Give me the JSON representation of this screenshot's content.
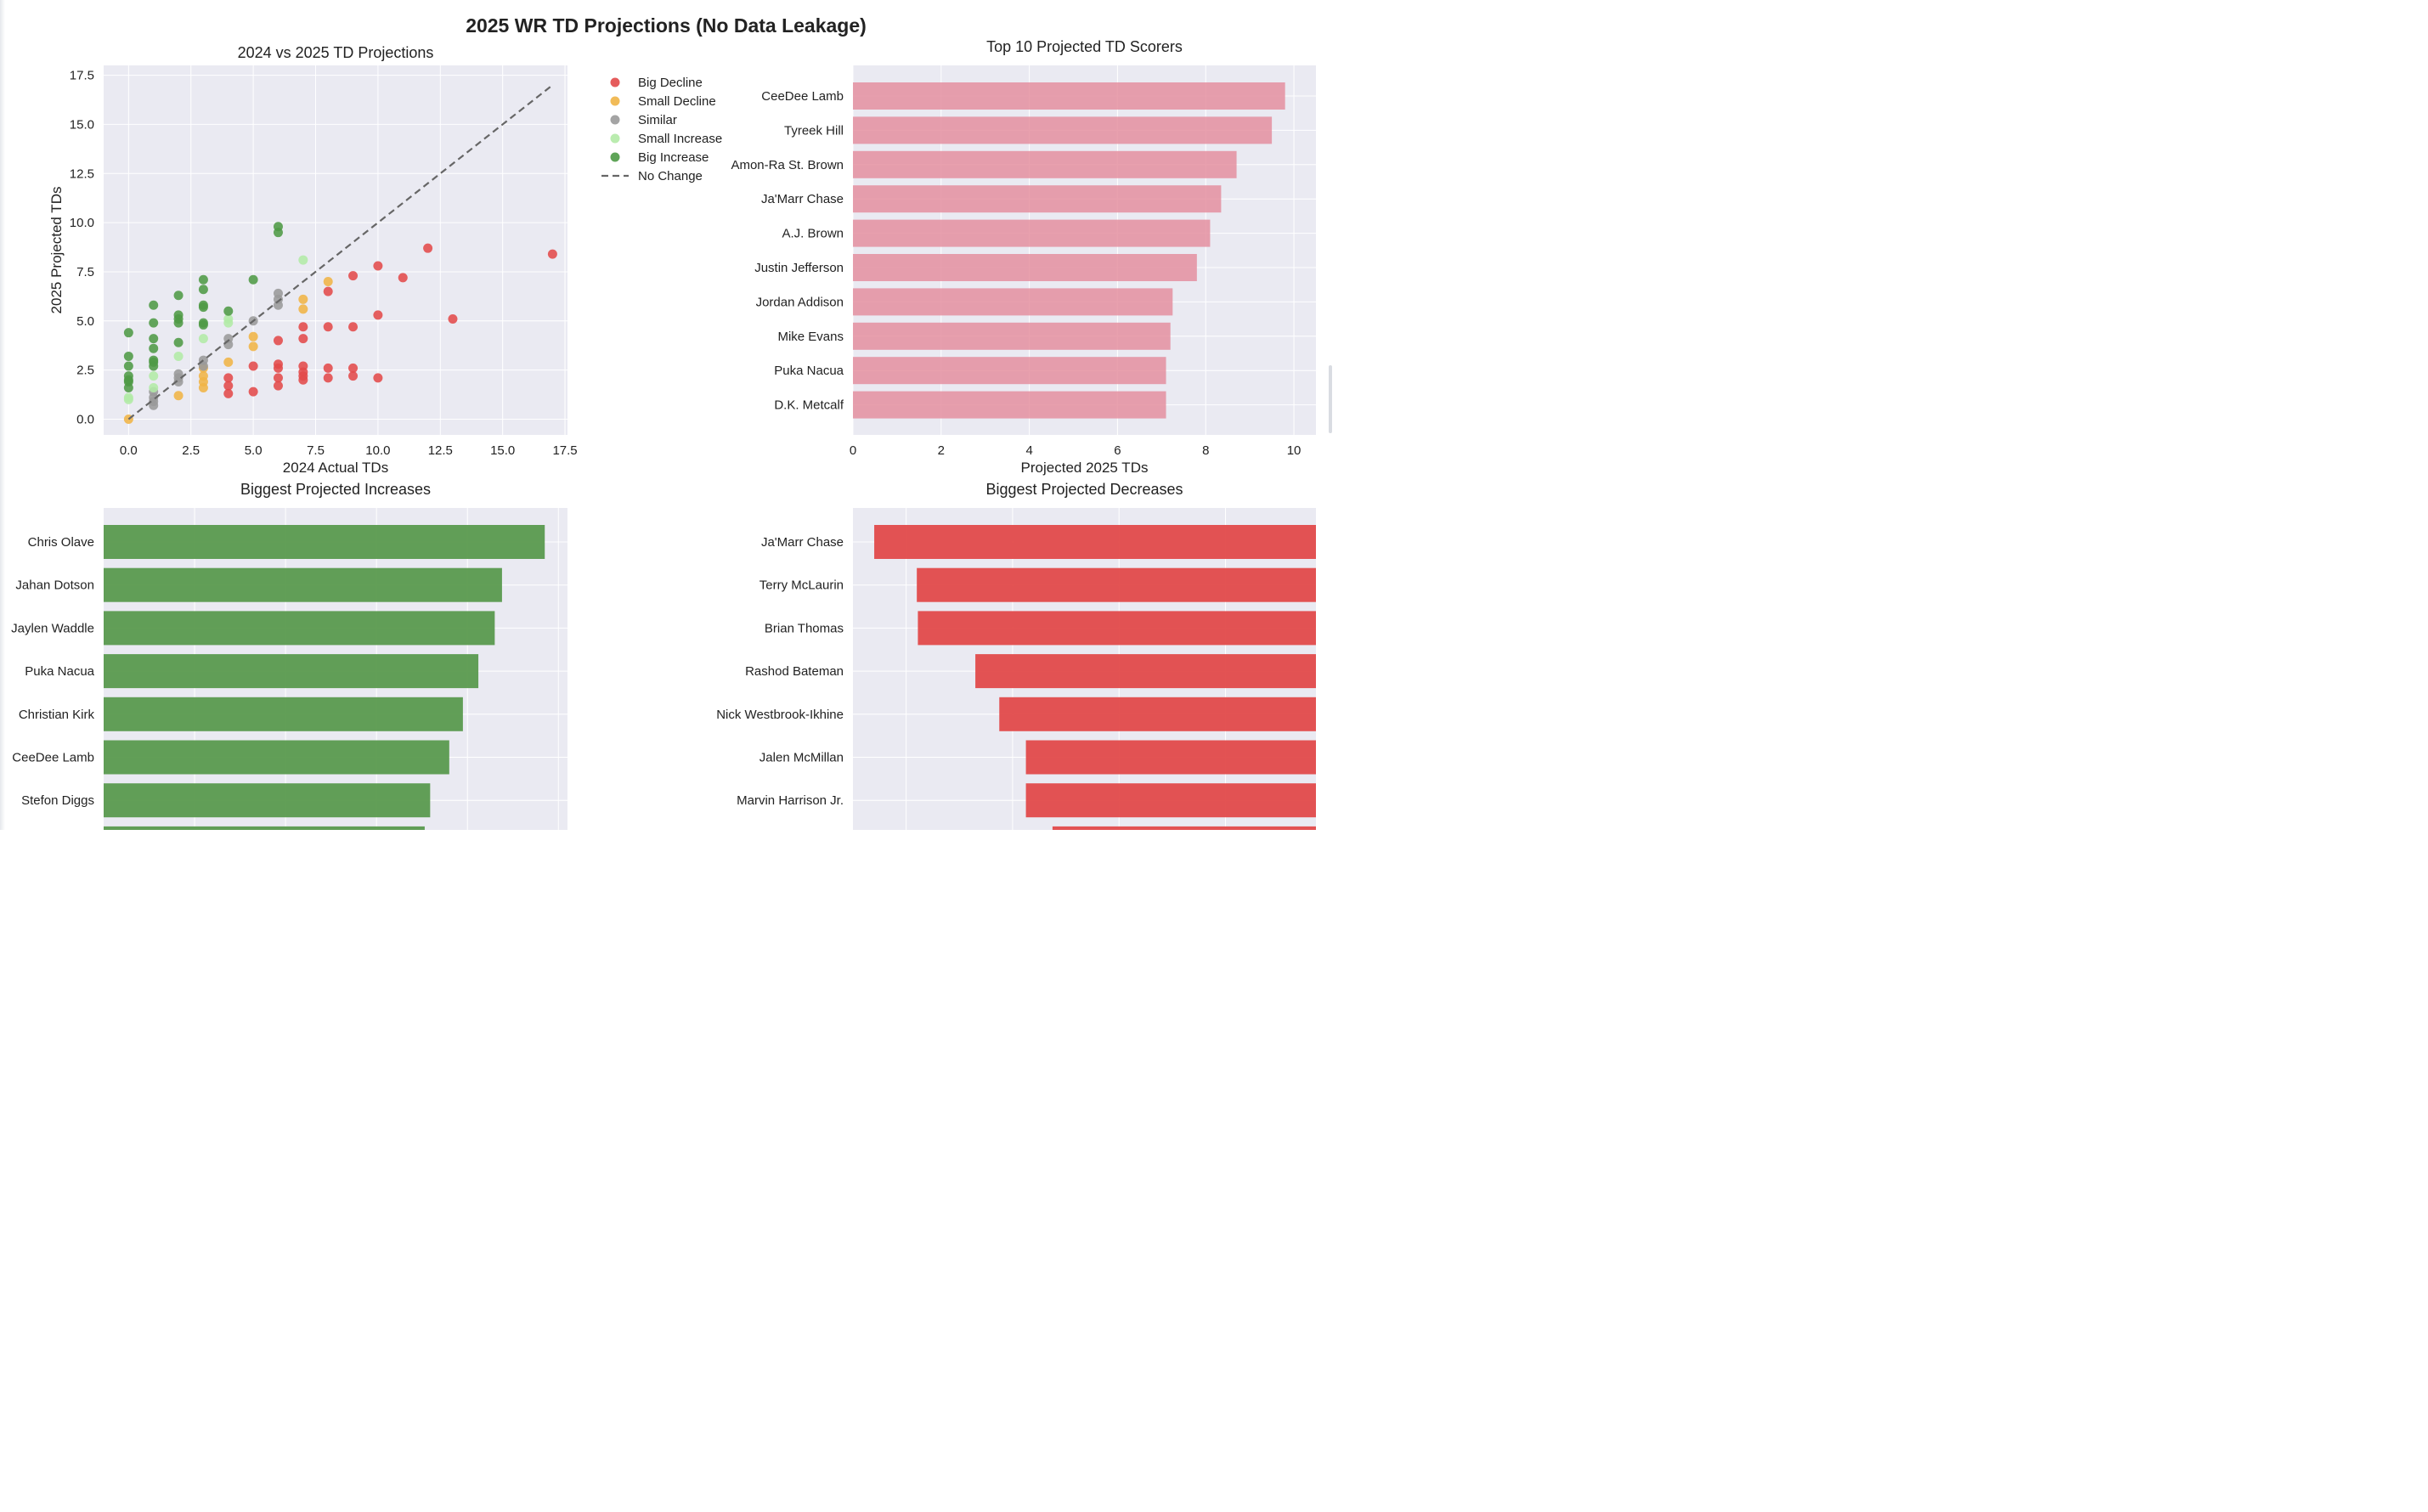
{
  "figure": {
    "title": "2025 WR TD Projections (No Data Leakage)"
  },
  "colors": {
    "big_decline": "#e24a4a",
    "small_decline": "#f0b446",
    "similar": "#9a9a9a",
    "small_increase": "#b2eaa6",
    "big_increase": "#4e9a46",
    "top_bar": "#e48fa0",
    "increase_bar": "#5a9a4e",
    "decrease_bar": "#e24a4a",
    "panel_bg": "#eaeaf2"
  },
  "chart_data": [
    {
      "type": "scatter",
      "title": "2024 vs 2025 TD Projections",
      "xlabel": "2024 Actual TDs",
      "ylabel": "2025 Projected TDs",
      "xlim": [
        -1,
        17.6
      ],
      "ylim": [
        -0.8,
        18.0
      ],
      "x_ticks": [
        "0.0",
        "2.5",
        "5.0",
        "7.5",
        "10.0",
        "12.5",
        "15.0",
        "17.5"
      ],
      "y_ticks": [
        "0.0",
        "2.5",
        "5.0",
        "7.5",
        "10.0",
        "12.5",
        "15.0",
        "17.5"
      ],
      "grid": true,
      "reference_line": {
        "label": "No Change",
        "from": [
          0,
          0
        ],
        "to": [
          17,
          17
        ]
      },
      "legend_position": "outside-right",
      "series": [
        {
          "name": "Big Decline",
          "color_key": "big_decline",
          "points": [
            [
              17,
              8.4
            ],
            [
              12,
              8.7
            ],
            [
              13,
              5.1
            ],
            [
              11,
              7.2
            ],
            [
              10,
              7.8
            ],
            [
              10,
              5.3
            ],
            [
              10,
              2.1
            ],
            [
              9,
              7.3
            ],
            [
              9,
              4.7
            ],
            [
              9,
              2.6
            ],
            [
              9,
              2.2
            ],
            [
              8,
              6.5
            ],
            [
              8,
              4.7
            ],
            [
              8,
              2.6
            ],
            [
              8,
              2.1
            ],
            [
              7,
              4.7
            ],
            [
              7,
              4.1
            ],
            [
              7,
              2.7
            ],
            [
              7,
              2.4
            ],
            [
              7,
              2.2
            ],
            [
              7,
              2.0
            ],
            [
              6,
              4.0
            ],
            [
              6,
              2.8
            ],
            [
              6,
              2.6
            ],
            [
              6,
              2.1
            ],
            [
              6,
              1.7
            ],
            [
              5,
              2.7
            ],
            [
              5,
              1.4
            ],
            [
              4,
              2.1
            ],
            [
              4,
              1.7
            ],
            [
              4,
              1.3
            ]
          ]
        },
        {
          "name": "Small Decline",
          "color_key": "small_decline",
          "points": [
            [
              8,
              7.0
            ],
            [
              7,
              6.1
            ],
            [
              7,
              5.6
            ],
            [
              5,
              4.2
            ],
            [
              5,
              3.7
            ],
            [
              4,
              2.9
            ],
            [
              3,
              2.6
            ],
            [
              3,
              2.2
            ],
            [
              3,
              1.9
            ],
            [
              3,
              1.6
            ],
            [
              2,
              1.2
            ],
            [
              0,
              0.0
            ]
          ]
        },
        {
          "name": "Similar",
          "color_key": "similar",
          "points": [
            [
              6,
              6.4
            ],
            [
              6,
              6.1
            ],
            [
              6,
              5.8
            ],
            [
              5,
              5.0
            ],
            [
              4,
              4.1
            ],
            [
              4,
              3.8
            ],
            [
              3,
              3.0
            ],
            [
              3,
              2.7
            ],
            [
              2,
              2.3
            ],
            [
              2,
              2.1
            ],
            [
              2,
              1.9
            ],
            [
              1,
              1.4
            ],
            [
              1,
              1.1
            ],
            [
              1,
              0.9
            ],
            [
              1,
              0.7
            ]
          ]
        },
        {
          "name": "Small Increase",
          "color_key": "small_increase",
          "points": [
            [
              7,
              8.1
            ],
            [
              4,
              5.1
            ],
            [
              4,
              4.9
            ],
            [
              3,
              4.1
            ],
            [
              2,
              3.2
            ],
            [
              1,
              2.2
            ],
            [
              1,
              1.6
            ],
            [
              0,
              1.1
            ],
            [
              0,
              1.0
            ]
          ]
        },
        {
          "name": "Big Increase",
          "color_key": "big_increase",
          "points": [
            [
              6,
              9.8
            ],
            [
              6,
              9.5
            ],
            [
              5,
              7.1
            ],
            [
              4,
              5.5
            ],
            [
              3,
              7.1
            ],
            [
              3,
              6.6
            ],
            [
              3,
              5.8
            ],
            [
              3,
              5.7
            ],
            [
              3,
              4.9
            ],
            [
              3,
              4.8
            ],
            [
              2,
              6.3
            ],
            [
              2,
              5.3
            ],
            [
              2,
              5.1
            ],
            [
              2,
              4.9
            ],
            [
              2,
              3.9
            ],
            [
              1,
              5.8
            ],
            [
              1,
              4.9
            ],
            [
              1,
              4.1
            ],
            [
              1,
              3.6
            ],
            [
              1,
              3.0
            ],
            [
              1,
              2.9
            ],
            [
              1,
              2.7
            ],
            [
              0,
              4.4
            ],
            [
              0,
              3.2
            ],
            [
              0,
              2.7
            ],
            [
              0,
              2.2
            ],
            [
              0,
              2.0
            ],
            [
              0,
              1.9
            ],
            [
              0,
              1.6
            ]
          ]
        },
        {
          "name": "No Change",
          "color_key": "similar",
          "points": []
        }
      ]
    },
    {
      "type": "bar",
      "orientation": "horizontal",
      "title": "Top 10 Projected TD Scorers",
      "xlabel": "Projected 2025 TDs",
      "xlim": [
        0,
        10.5
      ],
      "x_ticks": [
        "0",
        "2",
        "4",
        "6",
        "8",
        "10"
      ],
      "grid": true,
      "color_key": "top_bar",
      "categories": [
        "CeeDee Lamb",
        "Tyreek Hill",
        "Amon-Ra St. Brown",
        "Ja'Marr Chase",
        "A.J. Brown",
        "Justin Jefferson",
        "Jordan Addison",
        "Mike Evans",
        "Puka Nacua",
        "D.K. Metcalf"
      ],
      "values": [
        9.8,
        9.5,
        8.7,
        8.35,
        8.1,
        7.8,
        7.25,
        7.2,
        7.1,
        7.1
      ]
    },
    {
      "type": "bar",
      "orientation": "horizontal",
      "title": "Biggest Projected Increases",
      "xlim": [
        0,
        5.1
      ],
      "grid": true,
      "color_key": "increase_bar",
      "categories": [
        "Chris Olave",
        "Jahan Dotson",
        "Jaylen Waddle",
        "Puka Nacua",
        "Christian Kirk",
        "CeeDee Lamb",
        "Stefon Diggs",
        ""
      ],
      "values": [
        4.85,
        4.38,
        4.3,
        4.12,
        3.95,
        3.8,
        3.59,
        3.53
      ]
    },
    {
      "type": "bar",
      "orientation": "horizontal",
      "title": "Biggest Projected Decreases",
      "xlim": [
        -9.0,
        -0.3
      ],
      "grid": true,
      "color_key": "decrease_bar",
      "categories": [
        "Ja'Marr Chase",
        "Terry McLaurin",
        "Brian Thomas",
        "Rashod Bateman",
        "Nick Westbrook-Ikhine",
        "Jalen McMillan",
        "Marvin Harrison Jr.",
        ""
      ],
      "values": [
        -8.6,
        -7.8,
        -7.78,
        -6.7,
        -6.25,
        -5.75,
        -5.75,
        -5.25
      ]
    }
  ]
}
